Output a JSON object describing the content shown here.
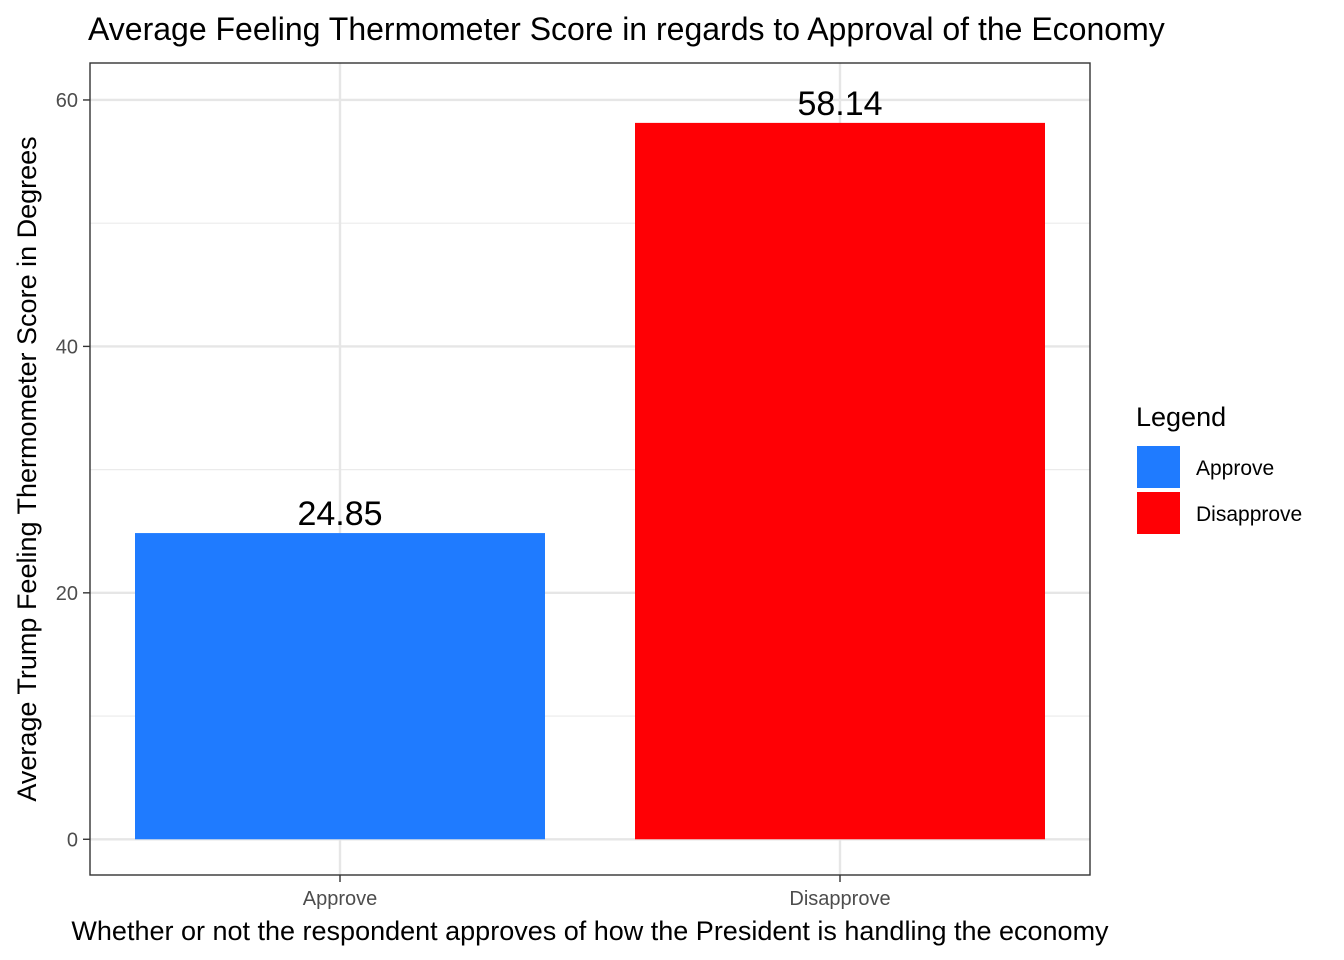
{
  "chart_data": {
    "type": "bar",
    "title": "Average Feeling Thermometer Score in regards to Approval of the Economy",
    "xlabel": "Whether or not the respondent approves of how the President is handling the economy",
    "ylabel": "Average Trump Feeling Thermometer Score in Degrees",
    "categories": [
      "Approve",
      "Disapprove"
    ],
    "values": [
      24.85,
      58.14
    ],
    "data_labels": [
      "24.85",
      "58.14"
    ],
    "colors": [
      "#1F7BFF",
      "#FF0005"
    ],
    "ylim": [
      -2.9,
      63.0
    ],
    "yticks": [
      0,
      20,
      40,
      60
    ],
    "yticks_minor": [
      10,
      30,
      50
    ],
    "grid": true,
    "legend": {
      "title": "Legend",
      "position": "right",
      "entries": [
        {
          "label": "Approve",
          "color": "#1F7BFF"
        },
        {
          "label": "Disapprove",
          "color": "#FF0005"
        }
      ]
    }
  }
}
